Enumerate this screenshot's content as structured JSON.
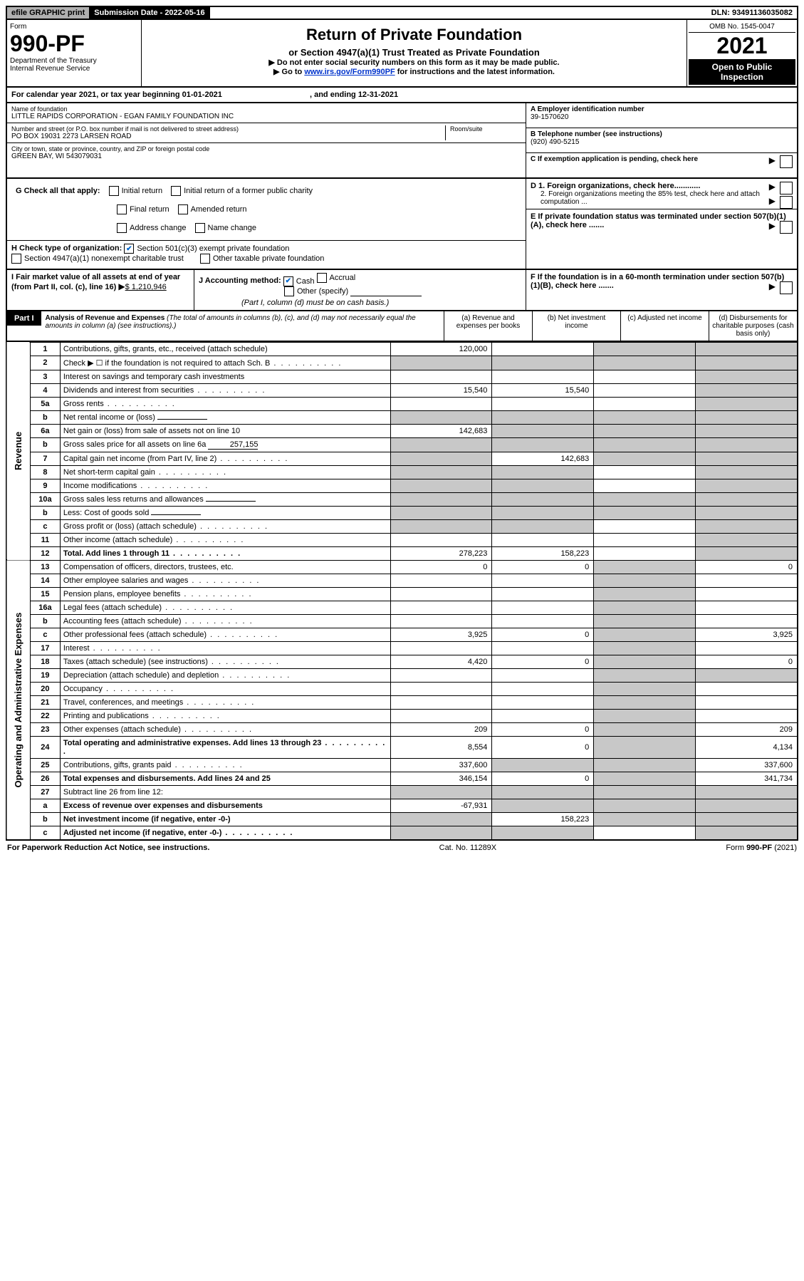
{
  "top": {
    "efile": "efile GRAPHIC print",
    "sub_label": "Submission Date - 2022-05-16",
    "dln": "DLN: 93491136035082"
  },
  "header": {
    "form_word": "Form",
    "form_num": "990-PF",
    "dept": "Department of the Treasury",
    "irs": "Internal Revenue Service",
    "title": "Return of Private Foundation",
    "subtitle": "or Section 4947(a)(1) Trust Treated as Private Foundation",
    "warn1": "▶ Do not enter social security numbers on this form as it may be made public.",
    "warn2_pre": "▶ Go to ",
    "warn2_link": "www.irs.gov/Form990PF",
    "warn2_post": " for instructions and the latest information.",
    "omb": "OMB No. 1545-0047",
    "year": "2021",
    "open": "Open to Public Inspection"
  },
  "cal": {
    "text": "For calendar year 2021, or tax year beginning 01-01-2021",
    "end": ", and ending 12-31-2021"
  },
  "info": {
    "name_lbl": "Name of foundation",
    "name": "LITTLE RAPIDS CORPORATION - EGAN FAMILY FOUNDATION INC",
    "addr_lbl": "Number and street (or P.O. box number if mail is not delivered to street address)",
    "addr": "PO BOX 19031 2273 LARSEN ROAD",
    "room_lbl": "Room/suite",
    "city_lbl": "City or town, state or province, country, and ZIP or foreign postal code",
    "city": "GREEN BAY, WI  543079031",
    "a_lbl": "A Employer identification number",
    "a_val": "39-1570620",
    "b_lbl": "B Telephone number (see instructions)",
    "b_val": "(920) 490-5215",
    "c_lbl": "C If exemption application is pending, check here"
  },
  "g": {
    "label": "G Check all that apply:",
    "opts": [
      "Initial return",
      "Initial return of a former public charity",
      "Final return",
      "Amended return",
      "Address change",
      "Name change"
    ]
  },
  "h": {
    "label": "H Check type of organization:",
    "opt1": "Section 501(c)(3) exempt private foundation",
    "opt2": "Section 4947(a)(1) nonexempt charitable trust",
    "opt3": "Other taxable private foundation"
  },
  "d": {
    "d1": "D 1. Foreign organizations, check here............",
    "d2": "2. Foreign organizations meeting the 85% test, check here and attach computation ...",
    "e": "E  If private foundation status was terminated under section 507(b)(1)(A), check here .......",
    "f": "F  If the foundation is in a 60-month termination under section 507(b)(1)(B), check here ......."
  },
  "i": {
    "label": "I Fair market value of all assets at end of year (from Part II, col. (c), line 16)",
    "val": "$  1,210,946"
  },
  "j": {
    "label": "J Accounting method:",
    "cash": "Cash",
    "accrual": "Accrual",
    "other": "Other (specify)",
    "note": "(Part I, column (d) must be on cash basis.)"
  },
  "part1": {
    "label": "Part I",
    "title": "Analysis of Revenue and Expenses",
    "note": " (The total of amounts in columns (b), (c), and (d) may not necessarily equal the amounts in column (a) (see instructions).)",
    "col_a": "(a)   Revenue and expenses per books",
    "col_b": "(b)   Net investment income",
    "col_c": "(c)   Adjusted net income",
    "col_d": "(d)   Disbursements for charitable purposes (cash basis only)"
  },
  "side": {
    "rev": "Revenue",
    "exp": "Operating and Administrative Expenses"
  },
  "rows": [
    {
      "n": "1",
      "d": "Contributions, gifts, grants, etc., received (attach schedule)",
      "a": "120,000",
      "b": "",
      "c": "shade",
      "dd": "shade"
    },
    {
      "n": "2",
      "d": "Check ▶ ☐ if the foundation is not required to attach Sch. B",
      "a": "shade",
      "b": "shade",
      "c": "shade",
      "dd": "shade",
      "dots": true
    },
    {
      "n": "3",
      "d": "Interest on savings and temporary cash investments",
      "a": "",
      "b": "",
      "c": "",
      "dd": "shade"
    },
    {
      "n": "4",
      "d": "Dividends and interest from securities",
      "a": "15,540",
      "b": "15,540",
      "c": "",
      "dd": "shade",
      "dots": true
    },
    {
      "n": "5a",
      "d": "Gross rents",
      "a": "",
      "b": "",
      "c": "",
      "dd": "shade",
      "dots": true
    },
    {
      "n": "b",
      "d": "Net rental income or (loss)",
      "a": "shade",
      "b": "shade",
      "c": "shade",
      "dd": "shade",
      "inline": ""
    },
    {
      "n": "6a",
      "d": "Net gain or (loss) from sale of assets not on line 10",
      "a": "142,683",
      "b": "shade",
      "c": "shade",
      "dd": "shade"
    },
    {
      "n": "b",
      "d": "Gross sales price for all assets on line 6a",
      "a": "shade",
      "b": "shade",
      "c": "shade",
      "dd": "shade",
      "inline": "257,155"
    },
    {
      "n": "7",
      "d": "Capital gain net income (from Part IV, line 2)",
      "a": "shade",
      "b": "142,683",
      "c": "shade",
      "dd": "shade",
      "dots": true
    },
    {
      "n": "8",
      "d": "Net short-term capital gain",
      "a": "shade",
      "b": "shade",
      "c": "",
      "dd": "shade",
      "dots": true
    },
    {
      "n": "9",
      "d": "Income modifications",
      "a": "shade",
      "b": "shade",
      "c": "",
      "dd": "shade",
      "dots": true
    },
    {
      "n": "10a",
      "d": "Gross sales less returns and allowances",
      "a": "shade",
      "b": "shade",
      "c": "shade",
      "dd": "shade",
      "inline": ""
    },
    {
      "n": "b",
      "d": "Less: Cost of goods sold",
      "a": "shade",
      "b": "shade",
      "c": "shade",
      "dd": "shade",
      "inline": "",
      "dots": true
    },
    {
      "n": "c",
      "d": "Gross profit or (loss) (attach schedule)",
      "a": "shade",
      "b": "shade",
      "c": "",
      "dd": "shade",
      "dots": true
    },
    {
      "n": "11",
      "d": "Other income (attach schedule)",
      "a": "",
      "b": "",
      "c": "",
      "dd": "shade",
      "dots": true
    },
    {
      "n": "12",
      "d": "Total. Add lines 1 through 11",
      "a": "278,223",
      "b": "158,223",
      "c": "",
      "dd": "shade",
      "bold": true,
      "dots": true
    },
    {
      "n": "13",
      "d": "Compensation of officers, directors, trustees, etc.",
      "a": "0",
      "b": "0",
      "c": "shade",
      "dd": "0"
    },
    {
      "n": "14",
      "d": "Other employee salaries and wages",
      "a": "",
      "b": "",
      "c": "shade",
      "dd": "",
      "dots": true
    },
    {
      "n": "15",
      "d": "Pension plans, employee benefits",
      "a": "",
      "b": "",
      "c": "shade",
      "dd": "",
      "dots": true
    },
    {
      "n": "16a",
      "d": "Legal fees (attach schedule)",
      "a": "",
      "b": "",
      "c": "shade",
      "dd": "",
      "dots": true
    },
    {
      "n": "b",
      "d": "Accounting fees (attach schedule)",
      "a": "",
      "b": "",
      "c": "shade",
      "dd": "",
      "dots": true
    },
    {
      "n": "c",
      "d": "Other professional fees (attach schedule)",
      "a": "3,925",
      "b": "0",
      "c": "shade",
      "dd": "3,925",
      "dots": true
    },
    {
      "n": "17",
      "d": "Interest",
      "a": "",
      "b": "",
      "c": "shade",
      "dd": "",
      "dots": true
    },
    {
      "n": "18",
      "d": "Taxes (attach schedule) (see instructions)",
      "a": "4,420",
      "b": "0",
      "c": "shade",
      "dd": "0",
      "dots": true
    },
    {
      "n": "19",
      "d": "Depreciation (attach schedule) and depletion",
      "a": "",
      "b": "",
      "c": "shade",
      "dd": "shade",
      "dots": true
    },
    {
      "n": "20",
      "d": "Occupancy",
      "a": "",
      "b": "",
      "c": "shade",
      "dd": "",
      "dots": true
    },
    {
      "n": "21",
      "d": "Travel, conferences, and meetings",
      "a": "",
      "b": "",
      "c": "shade",
      "dd": "",
      "dots": true
    },
    {
      "n": "22",
      "d": "Printing and publications",
      "a": "",
      "b": "",
      "c": "shade",
      "dd": "",
      "dots": true
    },
    {
      "n": "23",
      "d": "Other expenses (attach schedule)",
      "a": "209",
      "b": "0",
      "c": "shade",
      "dd": "209",
      "dots": true
    },
    {
      "n": "24",
      "d": "Total operating and administrative expenses. Add lines 13 through 23",
      "a": "8,554",
      "b": "0",
      "c": "shade",
      "dd": "4,134",
      "bold": true,
      "dots": true
    },
    {
      "n": "25",
      "d": "Contributions, gifts, grants paid",
      "a": "337,600",
      "b": "shade",
      "c": "shade",
      "dd": "337,600",
      "dots": true
    },
    {
      "n": "26",
      "d": "Total expenses and disbursements. Add lines 24 and 25",
      "a": "346,154",
      "b": "0",
      "c": "shade",
      "dd": "341,734",
      "bold": true
    },
    {
      "n": "27",
      "d": "Subtract line 26 from line 12:",
      "a": "shade",
      "b": "shade",
      "c": "shade",
      "dd": "shade"
    },
    {
      "n": "a",
      "d": "Excess of revenue over expenses and disbursements",
      "a": "-67,931",
      "b": "shade",
      "c": "shade",
      "dd": "shade",
      "bold": true
    },
    {
      "n": "b",
      "d": "Net investment income (if negative, enter -0-)",
      "a": "shade",
      "b": "158,223",
      "c": "shade",
      "dd": "shade",
      "bold": true
    },
    {
      "n": "c",
      "d": "Adjusted net income (if negative, enter -0-)",
      "a": "shade",
      "b": "shade",
      "c": "",
      "dd": "shade",
      "bold": true,
      "dots": true
    }
  ],
  "footer": {
    "left": "For Paperwork Reduction Act Notice, see instructions.",
    "mid": "Cat. No. 11289X",
    "right": "Form 990-PF (2021)"
  }
}
